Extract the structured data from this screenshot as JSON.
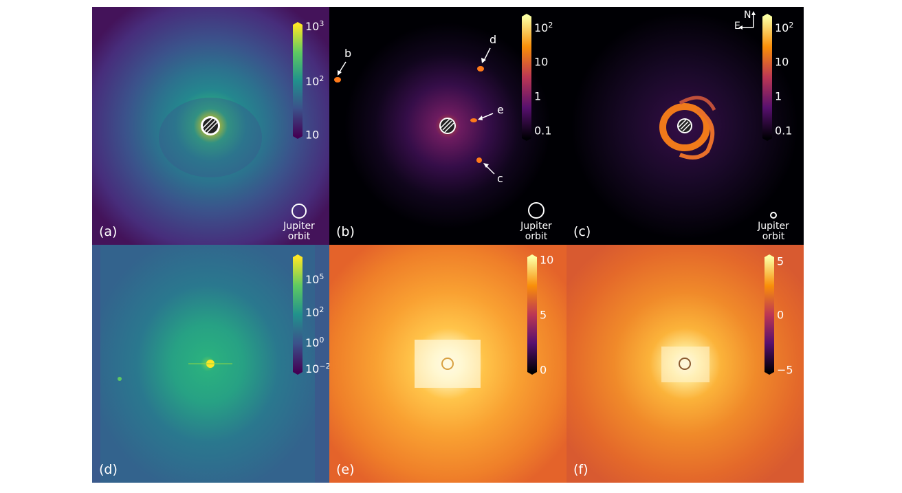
{
  "panels": [
    {
      "id": "a",
      "label": "(a)",
      "colorbar_ticks": [
        "10",
        "10",
        "10"
      ],
      "colorbar_exp": [
        "3",
        "2",
        ""
      ],
      "jupiter": [
        "Jupiter",
        "orbit"
      ]
    },
    {
      "id": "b",
      "label": "(b)",
      "colorbar_ticks": [
        "10",
        "10",
        "1",
        "0.1"
      ],
      "colorbar_exp": [
        "2",
        "",
        "",
        ""
      ],
      "planets": [
        "b",
        "c",
        "d",
        "e"
      ],
      "jupiter": [
        "Jupiter",
        "orbit"
      ]
    },
    {
      "id": "c",
      "label": "(c)",
      "colorbar_ticks": [
        "10",
        "10",
        "1",
        "0.1"
      ],
      "colorbar_exp": [
        "2",
        "",
        "",
        ""
      ],
      "compass": {
        "north": "N",
        "east": "E"
      },
      "jupiter": [
        "Jupiter",
        "orbit"
      ]
    },
    {
      "id": "d",
      "label": "(d)",
      "colorbar_ticks": [
        "10",
        "10",
        "10",
        "10"
      ],
      "colorbar_exp": [
        "5",
        "2",
        "0",
        "−2"
      ]
    },
    {
      "id": "e",
      "label": "(e)",
      "colorbar_ticks": [
        "10",
        "5",
        "0"
      ]
    },
    {
      "id": "f",
      "label": "(f)",
      "colorbar_ticks": [
        "5",
        "0",
        "−5"
      ]
    }
  ],
  "colors": {
    "viridis_dark": "#440154",
    "viridis_mid": "#21918c",
    "viridis_light": "#fde725",
    "inferno_dark": "#000004",
    "inferno_mid": "#bc3754",
    "inferno_light": "#fcffa4",
    "background_orange": "#e8702a"
  }
}
